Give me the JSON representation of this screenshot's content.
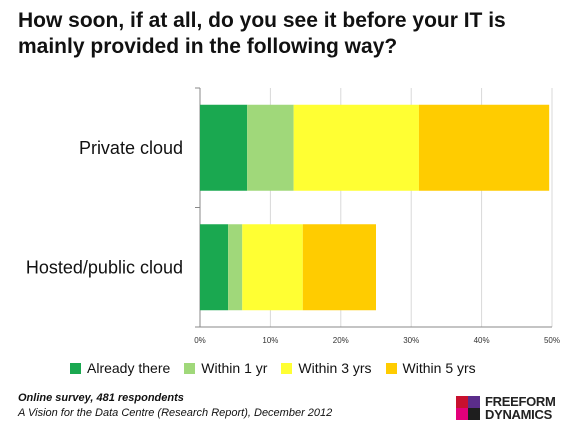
{
  "title": "How soon, if at all, do you see it before your IT is mainly provided in the following way?",
  "chart_data": {
    "type": "bar",
    "orientation": "horizontal",
    "stacked": true,
    "categories": [
      "Private cloud",
      "Hosted/public cloud"
    ],
    "series": [
      {
        "name": "Already there",
        "values": [
          6.7,
          4.0
        ],
        "color": "#1aa850"
      },
      {
        "name": "Within 1 yr",
        "values": [
          6.6,
          2.0
        ],
        "color": "#a0d87a"
      },
      {
        "name": "Within 3 yrs",
        "values": [
          17.8,
          8.6
        ],
        "color": "#ffff33"
      },
      {
        "name": "Within 5 yrs",
        "values": [
          18.5,
          10.4
        ],
        "color": "#ffcc00"
      }
    ],
    "xlim": [
      0,
      50
    ],
    "xticks": [
      "0%",
      "10%",
      "20%",
      "30%",
      "40%",
      "50%"
    ],
    "grid": true,
    "legend": "bottom"
  },
  "footer": {
    "line1": "Online survey, 481 respondents",
    "line2": "A Vision for the Data Centre (Research Report), December 2012"
  },
  "logo": {
    "line1": "FREEFORM",
    "line2": "DYNAMICS"
  }
}
